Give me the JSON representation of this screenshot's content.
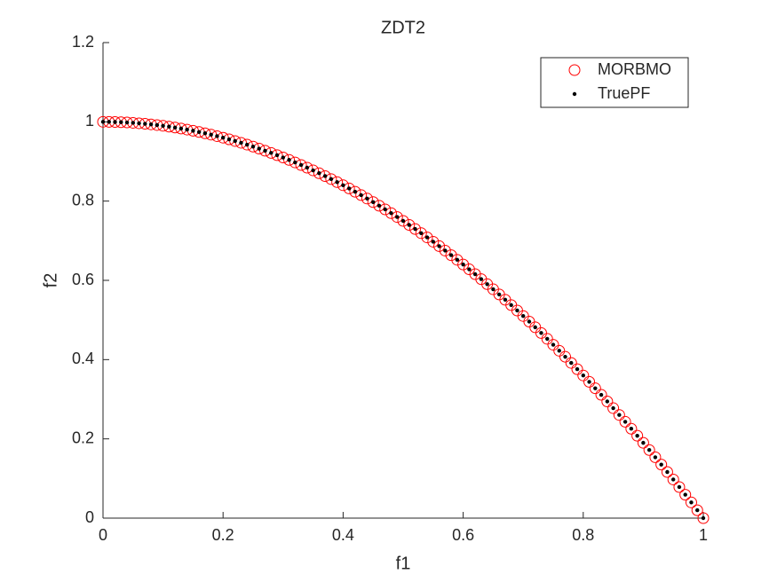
{
  "chart_data": {
    "type": "scatter",
    "title": "ZDT2",
    "xlabel": "f1",
    "ylabel": "f2",
    "x": [
      0,
      0.01,
      0.02,
      0.03,
      0.04,
      0.05,
      0.06,
      0.07,
      0.08,
      0.09,
      0.1,
      0.11,
      0.12,
      0.13,
      0.14,
      0.15,
      0.16,
      0.17,
      0.18,
      0.19,
      0.2,
      0.21,
      0.22,
      0.23,
      0.24,
      0.25,
      0.26,
      0.27,
      0.28,
      0.29,
      0.3,
      0.31,
      0.32,
      0.33,
      0.34,
      0.35,
      0.36,
      0.37,
      0.38,
      0.39,
      0.4,
      0.41,
      0.42,
      0.43,
      0.44,
      0.45,
      0.46,
      0.47,
      0.48,
      0.49,
      0.5,
      0.51,
      0.52,
      0.53,
      0.54,
      0.55,
      0.56,
      0.57,
      0.58,
      0.59,
      0.6,
      0.61,
      0.62,
      0.63,
      0.64,
      0.65,
      0.66,
      0.67,
      0.68,
      0.69,
      0.7,
      0.71,
      0.72,
      0.73,
      0.74,
      0.75,
      0.76,
      0.77,
      0.78,
      0.79,
      0.8,
      0.81,
      0.82,
      0.83,
      0.84,
      0.85,
      0.86,
      0.87,
      0.88,
      0.89,
      0.9,
      0.91,
      0.92,
      0.93,
      0.94,
      0.95,
      0.96,
      0.97,
      0.98,
      0.99,
      1
    ],
    "series": [
      {
        "name": "MORBMO",
        "color": "#ff0000",
        "marker": "circle",
        "values": [
          1,
          0.9999,
          0.9996,
          0.9991,
          0.9984,
          0.9975,
          0.9964,
          0.9951,
          0.9936,
          0.9919,
          0.99,
          0.9879,
          0.9856,
          0.9831,
          0.9804,
          0.9775,
          0.9744,
          0.9711,
          0.9676,
          0.9639,
          0.96,
          0.9559,
          0.9516,
          0.9471,
          0.9424,
          0.9375,
          0.9324,
          0.9271,
          0.9216,
          0.9159,
          0.91,
          0.9039,
          0.8976,
          0.8911,
          0.8844,
          0.8775,
          0.8704,
          0.8631,
          0.8556,
          0.8479,
          0.84,
          0.8319,
          0.8236,
          0.8151,
          0.8064,
          0.7975,
          0.7884,
          0.7791,
          0.7696,
          0.7599,
          0.75,
          0.7399,
          0.7296,
          0.7191,
          0.7084,
          0.6975,
          0.6864,
          0.6751,
          0.6636,
          0.6519,
          0.64,
          0.6279,
          0.6156,
          0.6031,
          0.5904,
          0.5775,
          0.5644,
          0.5511,
          0.5376,
          0.5239,
          0.51,
          0.4959,
          0.4816,
          0.4671,
          0.4524,
          0.4375,
          0.4224,
          0.4071,
          0.3916,
          0.3759,
          0.36,
          0.3439,
          0.3276,
          0.3111,
          0.2944,
          0.2775,
          0.2604,
          0.2431,
          0.2256,
          0.2079,
          0.19,
          0.1719,
          0.1536,
          0.1351,
          0.1164,
          0.0975,
          0.0784,
          0.0591,
          0.0396,
          0.0199,
          0
        ]
      },
      {
        "name": "TruePF",
        "color": "#000000",
        "marker": "dot",
        "values": [
          1,
          0.9999,
          0.9996,
          0.9991,
          0.9984,
          0.9975,
          0.9964,
          0.9951,
          0.9936,
          0.9919,
          0.99,
          0.9879,
          0.9856,
          0.9831,
          0.9804,
          0.9775,
          0.9744,
          0.9711,
          0.9676,
          0.9639,
          0.96,
          0.9559,
          0.9516,
          0.9471,
          0.9424,
          0.9375,
          0.9324,
          0.9271,
          0.9216,
          0.9159,
          0.91,
          0.9039,
          0.8976,
          0.8911,
          0.8844,
          0.8775,
          0.8704,
          0.8631,
          0.8556,
          0.8479,
          0.84,
          0.8319,
          0.8236,
          0.8151,
          0.8064,
          0.7975,
          0.7884,
          0.7791,
          0.7696,
          0.7599,
          0.75,
          0.7399,
          0.7296,
          0.7191,
          0.7084,
          0.6975,
          0.6864,
          0.6751,
          0.6636,
          0.6519,
          0.64,
          0.6279,
          0.6156,
          0.6031,
          0.5904,
          0.5775,
          0.5644,
          0.5511,
          0.5376,
          0.5239,
          0.51,
          0.4959,
          0.4816,
          0.4671,
          0.4524,
          0.4375,
          0.4224,
          0.4071,
          0.3916,
          0.3759,
          0.36,
          0.3439,
          0.3276,
          0.3111,
          0.2944,
          0.2775,
          0.2604,
          0.2431,
          0.2256,
          0.2079,
          0.19,
          0.1719,
          0.1536,
          0.1351,
          0.1164,
          0.0975,
          0.0784,
          0.0591,
          0.0396,
          0.0199,
          0
        ]
      }
    ],
    "xlim": [
      0,
      1
    ],
    "xticks": [
      0,
      0.2,
      0.4,
      0.6,
      0.8,
      1
    ],
    "ylim": [
      0,
      1.2
    ],
    "yticks": [
      0,
      0.2,
      0.4,
      0.6,
      0.8,
      1,
      1.2
    ],
    "grid": false,
    "legend": "northeast"
  }
}
